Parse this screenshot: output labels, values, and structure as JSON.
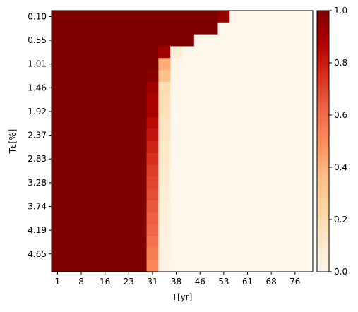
{
  "chart_data": {
    "type": "heatmap",
    "title": "",
    "xlabel": "T[yr]",
    "ylabel": "Tε[%]",
    "x_categories": [
      "1",
      "",
      "8",
      "",
      "16",
      "",
      "23",
      "",
      "31",
      "",
      "38",
      "",
      "46",
      "",
      "53",
      "",
      "61",
      "",
      "68",
      "",
      "76",
      ""
    ],
    "x_tick_labels": [
      "1",
      "8",
      "16",
      "23",
      "31",
      "38",
      "46",
      "53",
      "61",
      "68",
      "76"
    ],
    "y_categories": [
      "0.10",
      "",
      "0.55",
      "",
      "1.01",
      "",
      "1.46",
      "",
      "1.92",
      "",
      "2.37",
      "",
      "2.83",
      "",
      "3.28",
      "",
      "3.74",
      "",
      "4.19",
      "",
      "4.65",
      ""
    ],
    "y_tick_labels": [
      "0.10",
      "0.55",
      "1.01",
      "1.46",
      "1.92",
      "2.37",
      "2.83",
      "3.28",
      "3.74",
      "4.19",
      "4.65"
    ],
    "colormap": "OrRd",
    "colorbar": {
      "min": 0.0,
      "max": 1.0,
      "tick_labels": [
        "0.0",
        "0.2",
        "0.4",
        "0.6",
        "0.8",
        "1.0"
      ],
      "tick_values": [
        0.0,
        0.2,
        0.4,
        0.6,
        0.8,
        1.0
      ]
    },
    "values": [
      [
        1,
        1,
        1,
        1,
        1,
        1,
        1,
        1,
        1,
        1,
        1,
        1,
        1,
        1,
        0.95,
        0,
        0,
        0,
        0,
        0,
        0,
        0
      ],
      [
        1,
        1,
        1,
        1,
        1,
        1,
        1,
        1,
        1,
        1,
        1,
        1,
        1,
        1,
        0,
        0,
        0,
        0,
        0,
        0,
        0,
        0
      ],
      [
        1,
        1,
        1,
        1,
        1,
        1,
        1,
        1,
        1,
        1,
        1,
        1,
        0,
        0,
        0,
        0,
        0,
        0,
        0,
        0,
        0,
        0
      ],
      [
        1,
        1,
        1,
        1,
        1,
        1,
        1,
        1,
        1,
        0.92,
        0.08,
        0,
        0,
        0,
        0,
        0,
        0,
        0,
        0,
        0,
        0,
        0
      ],
      [
        1,
        1,
        1,
        1,
        1,
        1,
        1,
        1,
        1,
        0.42,
        0.02,
        0,
        0,
        0,
        0,
        0,
        0,
        0,
        0,
        0,
        0,
        0
      ],
      [
        1,
        1,
        1,
        1,
        1,
        1,
        1,
        1,
        0.98,
        0.35,
        0.01,
        0,
        0,
        0,
        0,
        0,
        0,
        0,
        0,
        0,
        0,
        0
      ],
      [
        1,
        1,
        1,
        1,
        1,
        1,
        1,
        1,
        0.92,
        0.2,
        0.01,
        0,
        0,
        0,
        0,
        0,
        0,
        0,
        0,
        0,
        0,
        0
      ],
      [
        1,
        1,
        1,
        1,
        1,
        1,
        1,
        1,
        0.9,
        0.18,
        0,
        0,
        0,
        0,
        0,
        0,
        0,
        0,
        0,
        0,
        0,
        0
      ],
      [
        1,
        1,
        1,
        1,
        1,
        1,
        1,
        1,
        0.9,
        0.17,
        0,
        0,
        0,
        0,
        0,
        0,
        0,
        0,
        0,
        0,
        0,
        0
      ],
      [
        1,
        1,
        1,
        1,
        1,
        1,
        1,
        1,
        0.85,
        0.15,
        0,
        0,
        0,
        0,
        0,
        0,
        0,
        0,
        0,
        0,
        0,
        0
      ],
      [
        1,
        1,
        1,
        1,
        1,
        1,
        1,
        1,
        0.82,
        0.15,
        0,
        0,
        0,
        0,
        0,
        0,
        0,
        0,
        0,
        0,
        0,
        0
      ],
      [
        1,
        1,
        1,
        1,
        1,
        1,
        1,
        1,
        0.78,
        0.12,
        0,
        0,
        0,
        0,
        0,
        0,
        0,
        0,
        0,
        0,
        0,
        0
      ],
      [
        1,
        1,
        1,
        1,
        1,
        1,
        1,
        1,
        0.75,
        0.12,
        0,
        0,
        0,
        0,
        0,
        0,
        0,
        0,
        0,
        0,
        0,
        0
      ],
      [
        1,
        1,
        1,
        1,
        1,
        1,
        1,
        1,
        0.72,
        0.1,
        0,
        0,
        0,
        0,
        0,
        0,
        0,
        0,
        0,
        0,
        0,
        0
      ],
      [
        1,
        1,
        1,
        1,
        1,
        1,
        1,
        1,
        0.7,
        0.09,
        0,
        0,
        0,
        0,
        0,
        0,
        0,
        0,
        0,
        0,
        0,
        0
      ],
      [
        1,
        1,
        1,
        1,
        1,
        1,
        1,
        1,
        0.68,
        0.08,
        0,
        0,
        0,
        0,
        0,
        0,
        0,
        0,
        0,
        0,
        0,
        0
      ],
      [
        1,
        1,
        1,
        1,
        1,
        1,
        1,
        1,
        0.66,
        0.07,
        0,
        0,
        0,
        0,
        0,
        0,
        0,
        0,
        0,
        0,
        0,
        0
      ],
      [
        1,
        1,
        1,
        1,
        1,
        1,
        1,
        1,
        0.64,
        0.06,
        0,
        0,
        0,
        0,
        0,
        0,
        0,
        0,
        0,
        0,
        0,
        0
      ],
      [
        1,
        1,
        1,
        1,
        1,
        1,
        1,
        1,
        0.62,
        0.05,
        0,
        0,
        0,
        0,
        0,
        0,
        0,
        0,
        0,
        0,
        0,
        0
      ],
      [
        1,
        1,
        1,
        1,
        1,
        1,
        1,
        1,
        0.58,
        0.04,
        0,
        0,
        0,
        0,
        0,
        0,
        0,
        0,
        0,
        0,
        0,
        0
      ],
      [
        1,
        1,
        1,
        1,
        1,
        1,
        1,
        1,
        0.55,
        0.04,
        0,
        0,
        0,
        0,
        0,
        0,
        0,
        0,
        0,
        0,
        0,
        0
      ],
      [
        1,
        1,
        1,
        1,
        1,
        1,
        1,
        1,
        0.52,
        0.03,
        0,
        0,
        0,
        0,
        0,
        0,
        0,
        0,
        0,
        0,
        0,
        0
      ]
    ]
  }
}
